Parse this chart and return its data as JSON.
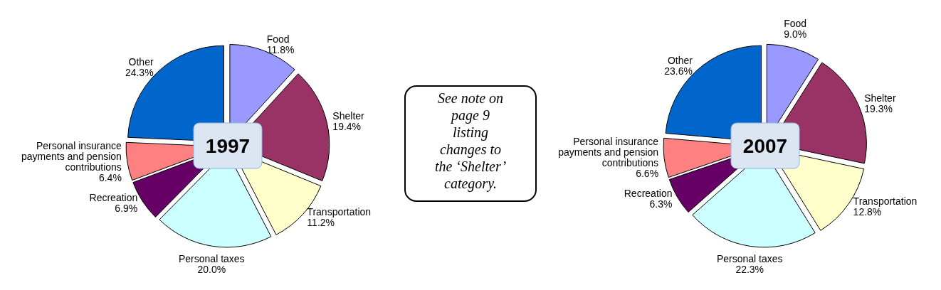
{
  "chart_data": [
    {
      "type": "pie",
      "title": "1997",
      "categories": [
        "Food",
        "Shelter",
        "Transportation",
        "Personal taxes",
        "Recreation",
        "Personal insurance payments and pension contributions",
        "Other"
      ],
      "values": [
        11.8,
        19.4,
        11.2,
        20.0,
        6.9,
        6.4,
        24.3
      ],
      "value_labels": [
        "11.8%",
        "19.4%",
        "11.2%",
        "20.0%",
        "6.9%",
        "6.4%",
        "24.3%"
      ],
      "colors": [
        "#9999ff",
        "#993366",
        "#ffffcc",
        "#ccffff",
        "#660066",
        "#ff8080",
        "#0066cc"
      ]
    },
    {
      "type": "other",
      "annotations": [
        "See note on page 9 listing changes to the ‘Shelter’ category."
      ]
    },
    {
      "type": "pie",
      "title": "2007",
      "categories": [
        "Food",
        "Shelter",
        "Transportation",
        "Personal taxes",
        "Recreation",
        "Personal insurance payments and pension contributions",
        "Other"
      ],
      "values": [
        9.0,
        19.3,
        12.8,
        22.3,
        6.3,
        6.6,
        23.6
      ],
      "value_labels": [
        "9.0%",
        "19.3%",
        "12.8%",
        "22.3%",
        "6.3%",
        "6.6%",
        "23.6%"
      ],
      "colors": [
        "#9999ff",
        "#993366",
        "#ffffcc",
        "#ccffff",
        "#660066",
        "#ff8080",
        "#0066cc"
      ]
    }
  ]
}
